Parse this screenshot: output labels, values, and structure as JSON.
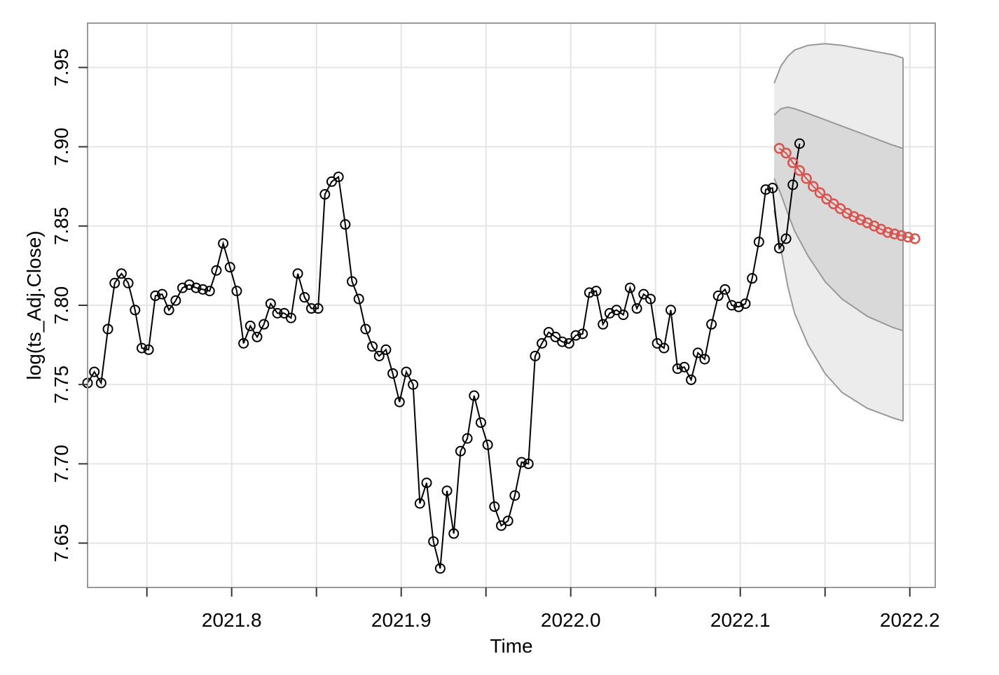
{
  "chart_data": {
    "type": "line",
    "title": "",
    "xlabel": "Time",
    "ylabel": "log(ts_Adj.Close)",
    "xlim": [
      2021.715,
      2022.215
    ],
    "ylim": [
      7.622,
      7.978
    ],
    "x_ticks": [
      2021.8,
      2021.9,
      2022.0,
      2022.1,
      2022.2
    ],
    "x_tick_labels": [
      "2021.8",
      "2021.9",
      "2022.0",
      "2022.1",
      "2022.2"
    ],
    "x_minor_ticks": [
      2021.75,
      2021.85,
      2021.95,
      2022.05,
      2022.15
    ],
    "y_ticks": [
      7.65,
      7.7,
      7.75,
      7.8,
      7.85,
      7.9,
      7.95
    ],
    "y_tick_labels": [
      "7.65",
      "7.70",
      "7.75",
      "7.80",
      "7.85",
      "7.90",
      "7.95"
    ],
    "grid": true,
    "series": [
      {
        "role": "observed",
        "x_start": 2021.715,
        "x_step": 0.004,
        "color": "#000000",
        "values": [
          7.751,
          7.758,
          7.751,
          7.785,
          7.814,
          7.82,
          7.814,
          7.797,
          7.773,
          7.772,
          7.806,
          7.807,
          7.797,
          7.803,
          7.811,
          7.813,
          7.811,
          7.81,
          7.809,
          7.822,
          7.839,
          7.824,
          7.809,
          7.776,
          7.787,
          7.78,
          7.788,
          7.801,
          7.795,
          7.795,
          7.792,
          7.82,
          7.805,
          7.798,
          7.798,
          7.87,
          7.878,
          7.881,
          7.851,
          7.815,
          7.804,
          7.785,
          7.774,
          7.768,
          7.772,
          7.757,
          7.739,
          7.758,
          7.75,
          7.675,
          7.688,
          7.651,
          7.634,
          7.683,
          7.656,
          7.708,
          7.716,
          7.743,
          7.726,
          7.712,
          7.673,
          7.661,
          7.664,
          7.68,
          7.701,
          7.7,
          7.768,
          7.776,
          7.783,
          7.78,
          7.777,
          7.776,
          7.781,
          7.782,
          7.808,
          7.809,
          7.788,
          7.795,
          7.797,
          7.794,
          7.811,
          7.798,
          7.807,
          7.804,
          7.776,
          7.773,
          7.797,
          7.76,
          7.761,
          7.753,
          7.77,
          7.766,
          7.788,
          7.806,
          7.81,
          7.8,
          7.799,
          7.801,
          7.817,
          7.84,
          7.873,
          7.874,
          7.836,
          7.842,
          7.876,
          7.902
        ]
      },
      {
        "role": "forecast",
        "x_start": 2022.123,
        "x_step": 0.004,
        "color": "#d9534f",
        "values": [
          7.899,
          7.896,
          7.89,
          7.885,
          7.88,
          7.875,
          7.871,
          7.867,
          7.864,
          7.861,
          7.858,
          7.856,
          7.854,
          7.852,
          7.85,
          7.848,
          7.846,
          7.845,
          7.844,
          7.843,
          7.842
        ]
      }
    ],
    "bands": [
      {
        "level": "outer",
        "fill": "#ececec",
        "edge": "#999999",
        "x": [
          2022.12,
          2022.124,
          2022.128,
          2022.132,
          2022.14,
          2022.15,
          2022.16,
          2022.175,
          2022.19,
          2022.196
        ],
        "upper": [
          7.94,
          7.951,
          7.957,
          7.961,
          7.964,
          7.965,
          7.964,
          7.961,
          7.958,
          7.956
        ],
        "lower": [
          7.86,
          7.835,
          7.812,
          7.795,
          7.775,
          7.757,
          7.745,
          7.735,
          7.729,
          7.727
        ]
      },
      {
        "level": "inner",
        "fill": "#d9d9d9",
        "edge": "#999999",
        "x": [
          2022.12,
          2022.124,
          2022.128,
          2022.132,
          2022.14,
          2022.15,
          2022.16,
          2022.175,
          2022.19,
          2022.196
        ],
        "upper": [
          7.92,
          7.924,
          7.925,
          7.924,
          7.921,
          7.917,
          7.913,
          7.907,
          7.901,
          7.899
        ],
        "lower": [
          7.88,
          7.87,
          7.858,
          7.847,
          7.831,
          7.815,
          7.804,
          7.793,
          7.786,
          7.784
        ]
      }
    ],
    "colors": {
      "grid": "#e5e5e5",
      "frame": "#999999",
      "observed": "#000000",
      "forecast": "#d9534f"
    }
  }
}
